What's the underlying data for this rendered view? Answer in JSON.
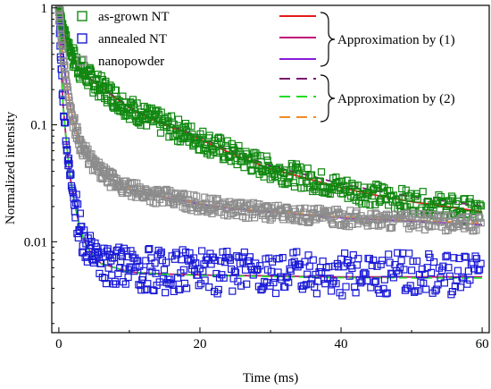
{
  "chart_data": {
    "type": "scatter",
    "title": "",
    "xlabel": "Time (ms)",
    "ylabel": "Normalized intensity",
    "xlim": [
      -1,
      61
    ],
    "ylim": [
      0.00167,
      1.05
    ],
    "yscale": "log",
    "grid": false,
    "legend_position": "top-left",
    "x_ticks": [
      0,
      20,
      40,
      60
    ],
    "x_tick_labels": [
      "0",
      "20",
      "40",
      "60"
    ],
    "y_ticks": [
      1,
      0.1,
      0.01
    ],
    "y_tick_labels": [
      "1",
      "0.1",
      "0.01"
    ],
    "series": [
      {
        "name": "as-grown NT",
        "marker": "open-square",
        "color": "#118811",
        "x": [
          0,
          0.5,
          1,
          1.5,
          2,
          3,
          4,
          5,
          6,
          8,
          10,
          12,
          15,
          18,
          20,
          25,
          30,
          35,
          40,
          45,
          50,
          55,
          60
        ],
        "y": [
          1.0,
          0.72,
          0.55,
          0.45,
          0.38,
          0.3,
          0.26,
          0.23,
          0.21,
          0.17,
          0.14,
          0.12,
          0.1,
          0.085,
          0.075,
          0.055,
          0.042,
          0.035,
          0.029,
          0.025,
          0.022,
          0.02,
          0.018
        ]
      },
      {
        "name": "annealed NT",
        "marker": "open-square",
        "color": "#1b1bd6",
        "x": [
          0,
          0.3,
          0.6,
          1,
          1.5,
          2,
          2.5,
          3,
          4,
          5,
          6,
          8,
          10,
          15,
          20,
          30,
          40,
          50,
          60
        ],
        "y": [
          1.0,
          0.35,
          0.15,
          0.08,
          0.04,
          0.025,
          0.018,
          0.013,
          0.009,
          0.0075,
          0.0065,
          0.006,
          0.0055,
          0.0053,
          0.0052,
          0.0051,
          0.005,
          0.005,
          0.005
        ]
      },
      {
        "name": "nanopowder",
        "marker": "open-square",
        "color": "#8c8c8c",
        "x": [
          0,
          0.5,
          1,
          1.5,
          2,
          3,
          4,
          5,
          6,
          8,
          10,
          15,
          20,
          25,
          30,
          40,
          50,
          60
        ],
        "y": [
          1.0,
          0.45,
          0.25,
          0.16,
          0.11,
          0.07,
          0.055,
          0.045,
          0.039,
          0.032,
          0.028,
          0.024,
          0.021,
          0.019,
          0.018,
          0.016,
          0.015,
          0.014
        ]
      }
    ],
    "fits": [
      {
        "group": "Approximation by (1)",
        "color": "#e31a1a",
        "dash": "solid"
      },
      {
        "group": "Approximation by (1)",
        "color": "#c0107a",
        "dash": "solid"
      },
      {
        "group": "Approximation by (1)",
        "color": "#8a1bdc",
        "dash": "solid"
      },
      {
        "group": "Approximation by (2)",
        "color": "#7a1a6e",
        "dash": "dashed"
      },
      {
        "group": "Approximation by (2)",
        "color": "#22dd22",
        "dash": "dashed"
      },
      {
        "group": "Approximation by (2)",
        "color": "#f08c28",
        "dash": "dashed"
      }
    ],
    "annotations": [
      "Approximation by (1)",
      "Approximation by (2)"
    ]
  }
}
